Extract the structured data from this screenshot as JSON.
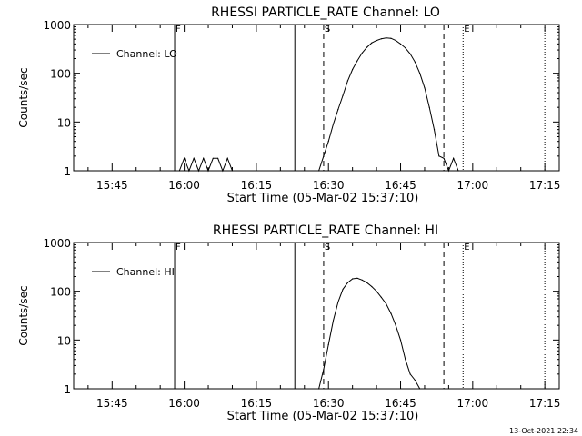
{
  "footer_timestamp": "13-Oct-2021 22:34",
  "chart_data": [
    {
      "type": "line",
      "title": "RHESSI PARTICLE_RATE Channel: LO",
      "xlabel": "Start Time (05-Mar-02 15:37:10)",
      "ylabel": "Counts/sec",
      "y_scale": "log",
      "ylim": [
        1,
        1000
      ],
      "xlim": [
        "15:37",
        "17:18"
      ],
      "x_ticks": [
        "15:45",
        "16:00",
        "16:15",
        "16:30",
        "16:45",
        "17:00",
        "17:15"
      ],
      "y_ticks": [
        "1",
        "10",
        "100",
        "1000"
      ],
      "legend": {
        "entry": "Channel: LO",
        "position": "top-left"
      },
      "markers": [
        {
          "label": "F",
          "time": "15:58",
          "style": "solid"
        },
        {
          "label": "",
          "time": "16:23",
          "style": "solid"
        },
        {
          "label": "S",
          "time": "16:29",
          "style": "dashed"
        },
        {
          "label": "",
          "time": "16:54",
          "style": "dashed"
        },
        {
          "label": "E",
          "time": "16:58",
          "style": "dotted"
        },
        {
          "label": "",
          "time": "17:15",
          "style": "dotted"
        }
      ],
      "series": [
        {
          "name": "Channel: LO",
          "x": [
            "15:58",
            "15:59",
            "16:00",
            "16:01",
            "16:02",
            "16:03",
            "16:04",
            "16:05",
            "16:06",
            "16:07",
            "16:08",
            "16:09",
            "16:10",
            "16:28",
            "16:29",
            "16:30",
            "16:31",
            "16:32",
            "16:33",
            "16:34",
            "16:35",
            "16:36",
            "16:37",
            "16:38",
            "16:39",
            "16:40",
            "16:41",
            "16:42",
            "16:43",
            "16:44",
            "16:45",
            "16:46",
            "16:47",
            "16:48",
            "16:49",
            "16:50",
            "16:51",
            "16:52",
            "16:53",
            "16:54",
            "16:55",
            "16:56",
            "16:57"
          ],
          "values": [
            1,
            1,
            1.8,
            1,
            1.8,
            1,
            1.8,
            1,
            1.8,
            1.8,
            1,
            1.8,
            1,
            1,
            2,
            4,
            9,
            18,
            35,
            70,
            120,
            180,
            260,
            340,
            420,
            470,
            510,
            530,
            520,
            470,
            400,
            330,
            250,
            170,
            100,
            50,
            20,
            7,
            2,
            1.8,
            1,
            1.8,
            1
          ]
        }
      ]
    },
    {
      "type": "line",
      "title": "RHESSI PARTICLE_RATE Channel: HI",
      "xlabel": "Start Time (05-Mar-02 15:37:10)",
      "ylabel": "Counts/sec",
      "y_scale": "log",
      "ylim": [
        1,
        1000
      ],
      "xlim": [
        "15:37",
        "17:18"
      ],
      "x_ticks": [
        "15:45",
        "16:00",
        "16:15",
        "16:30",
        "16:45",
        "17:00",
        "17:15"
      ],
      "y_ticks": [
        "1",
        "10",
        "100",
        "1000"
      ],
      "legend": {
        "entry": "Channel: HI",
        "position": "top-left"
      },
      "markers": [
        {
          "label": "F",
          "time": "15:58",
          "style": "solid"
        },
        {
          "label": "",
          "time": "16:23",
          "style": "solid"
        },
        {
          "label": "S",
          "time": "16:29",
          "style": "dashed"
        },
        {
          "label": "",
          "time": "16:54",
          "style": "dashed"
        },
        {
          "label": "E",
          "time": "16:58",
          "style": "dotted"
        },
        {
          "label": "",
          "time": "17:15",
          "style": "dotted"
        }
      ],
      "series": [
        {
          "name": "Channel: HI",
          "x": [
            "16:28",
            "16:29",
            "16:30",
            "16:31",
            "16:32",
            "16:33",
            "16:34",
            "16:35",
            "16:36",
            "16:37",
            "16:38",
            "16:39",
            "16:40",
            "16:41",
            "16:42",
            "16:43",
            "16:44",
            "16:45",
            "16:46",
            "16:47",
            "16:48",
            "16:49"
          ],
          "values": [
            1,
            2.5,
            8,
            25,
            60,
            110,
            150,
            180,
            185,
            170,
            150,
            125,
            100,
            75,
            55,
            35,
            20,
            10,
            4,
            2,
            1.5,
            1
          ]
        }
      ]
    }
  ]
}
